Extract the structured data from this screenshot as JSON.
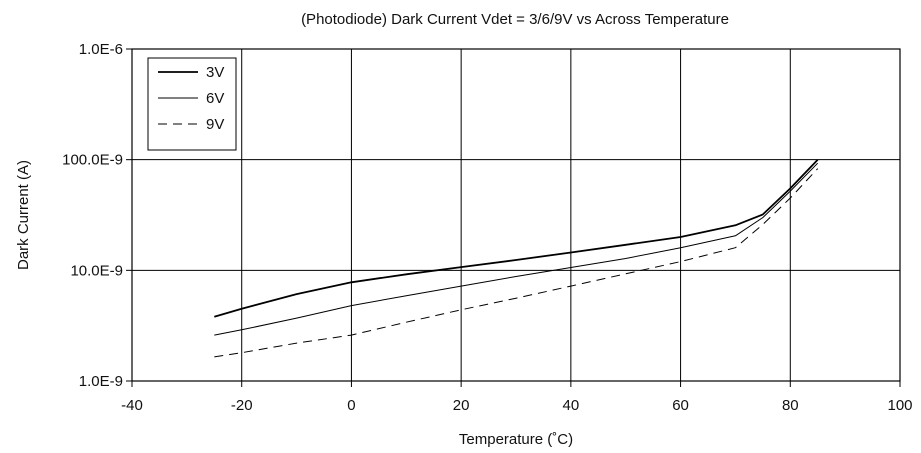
{
  "chart_data": {
    "type": "line",
    "title": "(Photodiode) Dark Current Vdet = 3/6/9V vs Across Temperature",
    "xlabel": "Temperature (˚C)",
    "ylabel": "Dark Current (A)",
    "xlim": [
      -40,
      100
    ],
    "ylim": [
      1e-09,
      1e-06
    ],
    "yscale": "log",
    "grid": true,
    "legend_position": "top-left",
    "x_ticks": [
      {
        "value": -40,
        "label": "-40"
      },
      {
        "value": -20,
        "label": "-20"
      },
      {
        "value": 0,
        "label": "0"
      },
      {
        "value": 20,
        "label": "20"
      },
      {
        "value": 40,
        "label": "40"
      },
      {
        "value": 60,
        "label": "60"
      },
      {
        "value": 80,
        "label": "80"
      },
      {
        "value": 100,
        "label": "100"
      }
    ],
    "y_ticks": [
      {
        "value": 1e-09,
        "label": "1.0E-9"
      },
      {
        "value": 1e-08,
        "label": "10.0E-9"
      },
      {
        "value": 1e-07,
        "label": "100.0E-9"
      },
      {
        "value": 1e-06,
        "label": "1.0E-6"
      }
    ],
    "series": [
      {
        "name": "3V",
        "style": "solid-thick",
        "x": [
          -25,
          -20,
          -10,
          0,
          10,
          20,
          30,
          40,
          50,
          60,
          70,
          75,
          80,
          85
        ],
        "y": [
          3.8e-09,
          4.5e-09,
          6.1e-09,
          7.8e-09,
          9.2e-09,
          1.07e-08,
          1.24e-08,
          1.45e-08,
          1.7e-08,
          2e-08,
          2.55e-08,
          3.2e-08,
          5.5e-08,
          1e-07
        ]
      },
      {
        "name": "6V",
        "style": "solid-thin",
        "x": [
          -25,
          -20,
          -10,
          0,
          10,
          20,
          30,
          40,
          50,
          60,
          70,
          75,
          80,
          85
        ],
        "y": [
          2.6e-09,
          2.9e-09,
          3.7e-09,
          4.8e-09,
          5.9e-09,
          7.2e-09,
          8.8e-09,
          1.06e-08,
          1.28e-08,
          1.6e-08,
          2.05e-08,
          3e-08,
          5.2e-08,
          9.3e-08
        ]
      },
      {
        "name": "9V",
        "style": "dashed",
        "x": [
          -25,
          -20,
          -10,
          0,
          10,
          20,
          30,
          40,
          50,
          60,
          70,
          75,
          80,
          85
        ],
        "y": [
          1.65e-09,
          1.8e-09,
          2.2e-09,
          2.6e-09,
          3.4e-09,
          4.4e-09,
          5.6e-09,
          7.2e-09,
          9.3e-09,
          1.2e-08,
          1.6e-08,
          2.6e-08,
          4.5e-08,
          8.3e-08
        ]
      }
    ]
  }
}
